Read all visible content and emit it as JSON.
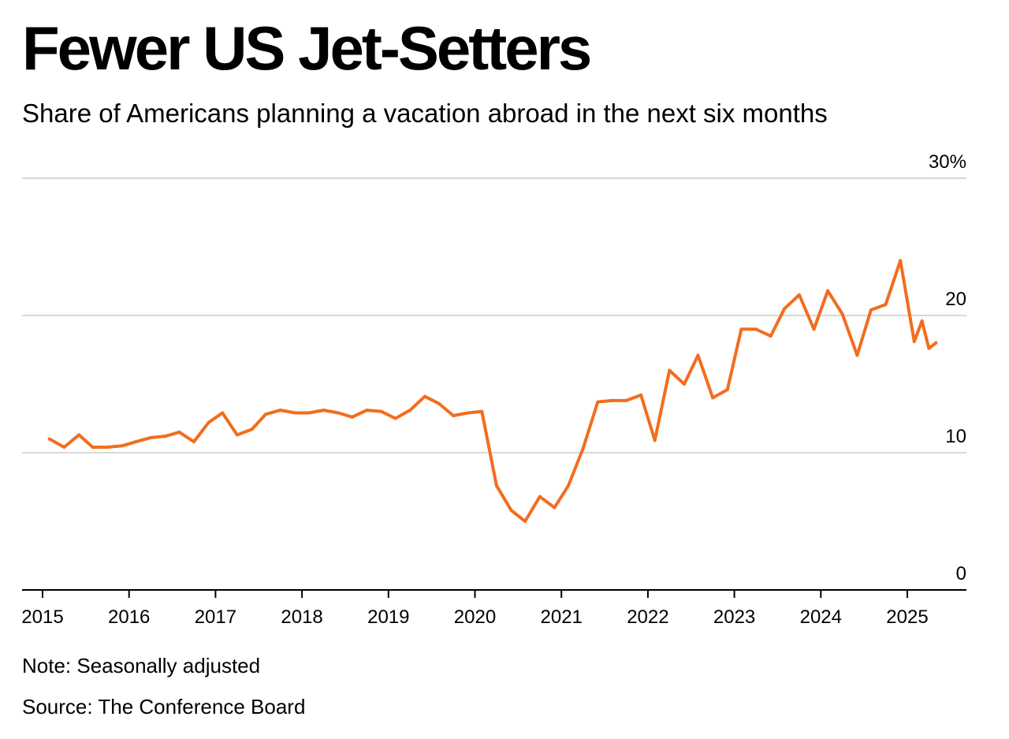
{
  "header": {
    "title": "Fewer US Jet-Setters",
    "subtitle": "Share of Americans planning a vacation abroad in the next six months"
  },
  "footer": {
    "note": "Note: Seasonally adjusted",
    "source": "Source: The Conference Board"
  },
  "colors": {
    "line": "#f26d1f",
    "grid": "#cccccc",
    "axis": "#000000"
  },
  "chart_data": {
    "type": "line",
    "title": "Fewer US Jet-Setters",
    "subtitle": "Share of Americans planning a vacation abroad in the next six months",
    "xlabel": "",
    "ylabel": "",
    "x_range": [
      2015,
      2025.65
    ],
    "ylim": [
      0,
      30
    ],
    "y_ticks": [
      {
        "value": 30,
        "label": "30%"
      },
      {
        "value": 20,
        "label": "20"
      },
      {
        "value": 10,
        "label": "10"
      },
      {
        "value": 0,
        "label": "0"
      }
    ],
    "x_ticks": [
      {
        "value": 2015,
        "label": "2015"
      },
      {
        "value": 2016,
        "label": "2016"
      },
      {
        "value": 2017,
        "label": "2017"
      },
      {
        "value": 2018,
        "label": "2018"
      },
      {
        "value": 2019,
        "label": "2019"
      },
      {
        "value": 2020,
        "label": "2020"
      },
      {
        "value": 2021,
        "label": "2021"
      },
      {
        "value": 2022,
        "label": "2022"
      },
      {
        "value": 2023,
        "label": "2023"
      },
      {
        "value": 2024,
        "label": "2024"
      },
      {
        "value": 2025,
        "label": "2025"
      }
    ],
    "grid": true,
    "legend": "none",
    "series": [
      {
        "name": "Share planning vacation abroad (%)",
        "color": "#f26d1f",
        "x": [
          2015.08,
          2015.25,
          2015.42,
          2015.58,
          2015.75,
          2015.92,
          2016.08,
          2016.25,
          2016.42,
          2016.58,
          2016.75,
          2016.92,
          2017.08,
          2017.25,
          2017.42,
          2017.58,
          2017.75,
          2017.92,
          2018.08,
          2018.25,
          2018.42,
          2018.58,
          2018.75,
          2018.92,
          2019.08,
          2019.25,
          2019.42,
          2019.58,
          2019.75,
          2019.92,
          2020.08,
          2020.25,
          2020.42,
          2020.58,
          2020.75,
          2020.92,
          2021.08,
          2021.25,
          2021.42,
          2021.58,
          2021.75,
          2021.92,
          2022.08,
          2022.25,
          2022.42,
          2022.58,
          2022.75,
          2022.92,
          2023.08,
          2023.25,
          2023.42,
          2023.58,
          2023.75,
          2023.92,
          2024.08,
          2024.25,
          2024.42,
          2024.58,
          2024.75,
          2024.92,
          2025.08,
          2025.17,
          2025.25,
          2025.33
        ],
        "values": [
          11.0,
          10.4,
          11.3,
          10.4,
          10.4,
          10.5,
          10.8,
          11.1,
          11.2,
          11.5,
          10.8,
          12.2,
          12.9,
          11.3,
          11.7,
          12.8,
          13.1,
          12.9,
          12.9,
          13.1,
          12.9,
          12.6,
          13.1,
          13.0,
          12.5,
          13.1,
          14.1,
          13.6,
          12.7,
          12.9,
          13.0,
          7.6,
          5.8,
          5.0,
          6.8,
          6.0,
          7.6,
          10.3,
          13.7,
          13.8,
          13.8,
          14.2,
          10.9,
          16.0,
          15.0,
          17.1,
          14.0,
          14.6,
          19.0,
          19.0,
          18.5,
          20.5,
          21.5,
          19.0,
          21.8,
          20.1,
          17.1,
          20.4,
          20.8,
          24.0,
          18.1,
          19.6,
          17.6,
          18.0
        ]
      }
    ]
  }
}
